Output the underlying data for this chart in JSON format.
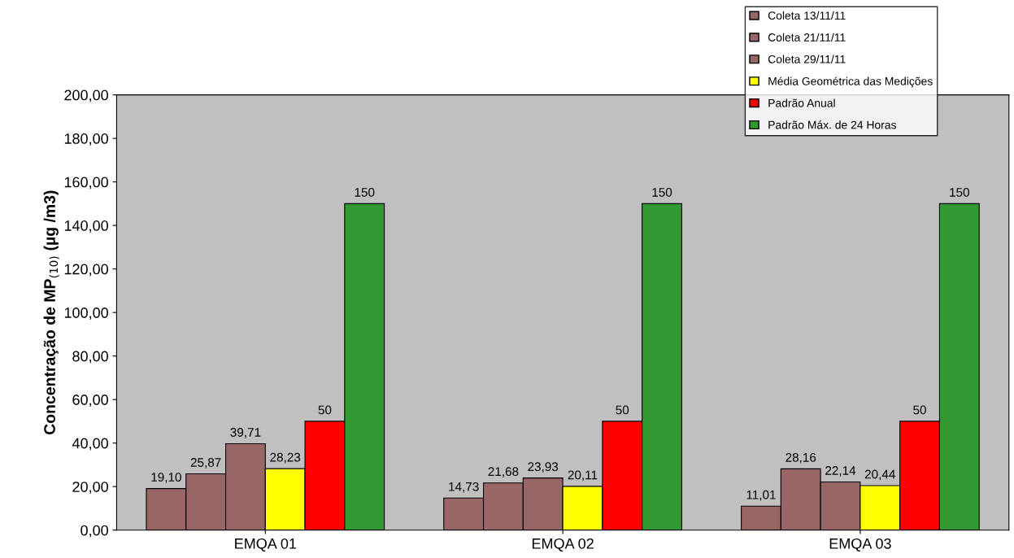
{
  "chart_data": {
    "type": "bar",
    "ylabel": "Concentração de MP$_{(10)}$ (µg /m3)",
    "categories": [
      "EMQA 01",
      "EMQA 02",
      "EMQA 03"
    ],
    "series": [
      {
        "name": "Coleta 13/11/11",
        "color": "#996666",
        "values": [
          19.1,
          14.73,
          11.01
        ],
        "value_labels": [
          "19,10",
          "14,73",
          "11,01"
        ]
      },
      {
        "name": "Coleta 21/11/11",
        "color": "#996666",
        "values": [
          25.87,
          21.68,
          28.16
        ],
        "value_labels": [
          "25,87",
          "21,68",
          "28,16"
        ]
      },
      {
        "name": "Coleta 29/11/11",
        "color": "#996666",
        "values": [
          39.71,
          23.93,
          22.14
        ],
        "value_labels": [
          "39,71",
          "23,93",
          "22,14"
        ]
      },
      {
        "name": "Média Geométrica das Medições",
        "color": "#ffff00",
        "values": [
          28.23,
          20.11,
          20.44
        ],
        "value_labels": [
          "28,23",
          "20,11",
          "20,44"
        ]
      },
      {
        "name": "Padrão Anual",
        "color": "#ff0000",
        "values": [
          50,
          50,
          50
        ],
        "value_labels": [
          "50",
          "50",
          "50"
        ]
      },
      {
        "name": "Padrão Máx. de 24 Horas",
        "color": "#339933",
        "values": [
          150,
          150,
          150
        ],
        "value_labels": [
          "150",
          "150",
          "150"
        ]
      }
    ],
    "ylim": [
      0,
      200
    ],
    "yticks": [
      {
        "value": 0,
        "label": "0,00"
      },
      {
        "value": 20,
        "label": "20,00"
      },
      {
        "value": 40,
        "label": "40,00"
      },
      {
        "value": 60,
        "label": "60,00"
      },
      {
        "value": 80,
        "label": "80,00"
      },
      {
        "value": 100,
        "label": "100,00"
      },
      {
        "value": 120,
        "label": "120,00"
      },
      {
        "value": 140,
        "label": "140,00"
      },
      {
        "value": 160,
        "label": "160,00"
      },
      {
        "value": 180,
        "label": "180,00"
      },
      {
        "value": 200,
        "label": "200,00"
      }
    ],
    "grid": false,
    "legend": "top right"
  }
}
